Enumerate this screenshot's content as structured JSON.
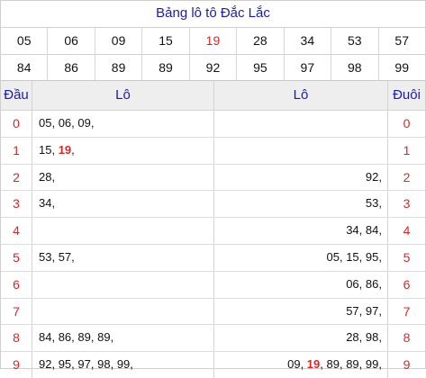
{
  "title": "Bảng lô tô Đắc Lắc",
  "numbers_row1": [
    "05",
    "06",
    "09",
    "15",
    "19",
    "28",
    "34",
    "53",
    "57"
  ],
  "numbers_row2": [
    "84",
    "86",
    "89",
    "89",
    "92",
    "95",
    "97",
    "98",
    "99"
  ],
  "highlight_number": "19",
  "colors": {
    "accent": "#1a1ab8",
    "highlight": "#e02424"
  },
  "table": {
    "headers": {
      "dau": "Đầu",
      "lo_left": "Lô",
      "lo_right": "Lô",
      "duoi": "Đuôi"
    },
    "rows": [
      {
        "dau": "0",
        "left": [
          "05",
          "06",
          "09"
        ],
        "right": [],
        "duoi": "0"
      },
      {
        "dau": "1",
        "left": [
          "15",
          "19"
        ],
        "right": [],
        "duoi": "1"
      },
      {
        "dau": "2",
        "left": [
          "28"
        ],
        "right": [
          "92"
        ],
        "duoi": "2"
      },
      {
        "dau": "3",
        "left": [
          "34"
        ],
        "right": [
          "53"
        ],
        "duoi": "3"
      },
      {
        "dau": "4",
        "left": [],
        "right": [
          "34",
          "84"
        ],
        "duoi": "4"
      },
      {
        "dau": "5",
        "left": [
          "53",
          "57"
        ],
        "right": [
          "05",
          "15",
          "95"
        ],
        "duoi": "5"
      },
      {
        "dau": "6",
        "left": [],
        "right": [
          "06",
          "86"
        ],
        "duoi": "6"
      },
      {
        "dau": "7",
        "left": [],
        "right": [
          "57",
          "97"
        ],
        "duoi": "7"
      },
      {
        "dau": "8",
        "left": [
          "84",
          "86",
          "89",
          "89"
        ],
        "right": [
          "28",
          "98"
        ],
        "duoi": "8"
      },
      {
        "dau": "9",
        "left": [
          "92",
          "95",
          "97",
          "98",
          "99"
        ],
        "right": [
          "09",
          "19",
          "89",
          "89",
          "99"
        ],
        "duoi": "9"
      }
    ]
  }
}
